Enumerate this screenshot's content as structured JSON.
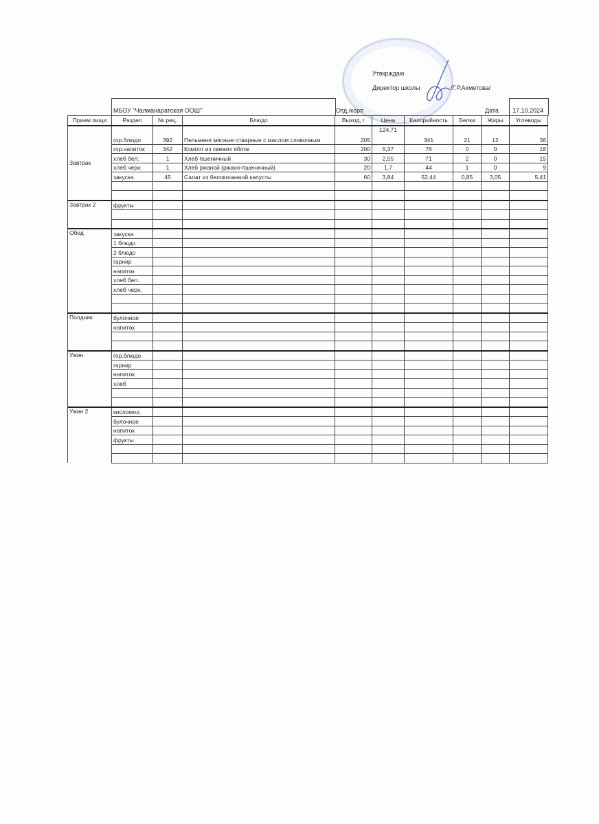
{
  "approval": {
    "approve_label": "Утвкрждаю",
    "director_label": "Директор школы",
    "director_name": "/Г.Р.Ахметова/"
  },
  "header": {
    "school": "МБОУ \"Чалманаратская ООШ\"",
    "dept_label": "Отд./корп",
    "date_label": "Дата",
    "date_value": "17.10.2024"
  },
  "columns": [
    "Прием пищи",
    "Раздел",
    "№ рец.",
    "Блюдо",
    "Выход, г",
    "Цена",
    "Калорийность",
    "Белки",
    "Жиры",
    "Углеводы"
  ],
  "sections": [
    {
      "meal": "Завтрак",
      "rows": [
        {
          "section": "гор.блюдо",
          "recipe": "392",
          "dish": "Пельмени мясные отварные с маслом сливочным",
          "yield": "205",
          "price": "124,71",
          "calories": "341",
          "protein": "21",
          "fat": "12",
          "carbs": "36"
        },
        {
          "section": "гор.напиток",
          "recipe": "342",
          "dish": "Компот из свежих яблок",
          "yield": "200",
          "price": "5,37",
          "calories": "76",
          "protein": "0",
          "fat": "0",
          "carbs": "18"
        },
        {
          "section": "хлеб бел.",
          "recipe": "1",
          "dish": "Хлеб пшеничный",
          "yield": "30",
          "price": "2,55",
          "calories": "71",
          "protein": "2",
          "fat": "0",
          "carbs": "15"
        },
        {
          "section": "хлеб черн.",
          "recipe": "1",
          "dish": "Хлеб ржаной (ржано-пшеничный)",
          "yield": "20",
          "price": "1,7",
          "calories": "44",
          "protein": "1",
          "fat": "0",
          "carbs": "9"
        },
        {
          "section": "закуска",
          "recipe": "45",
          "dish": "Салат из белокочанной капусты",
          "yield": "60",
          "price": "3,84",
          "calories": "52,44",
          "protein": "0,85",
          "fat": "3,05",
          "carbs": "5,41"
        },
        {},
        {}
      ]
    },
    {
      "meal": "Завтрак 2",
      "rows": [
        {
          "section": "фрукты"
        },
        {},
        {}
      ]
    },
    {
      "meal": "Обед",
      "rows": [
        {
          "section": "закуска"
        },
        {
          "section": "1 блюдо"
        },
        {
          "section": "2 блюдо"
        },
        {
          "section": "гарнир"
        },
        {
          "section": "напиток"
        },
        {
          "section": "хлеб бел."
        },
        {
          "section": "хлеб черн."
        },
        {},
        {}
      ]
    },
    {
      "meal": "Полдник",
      "rows": [
        {
          "section": "булочное"
        },
        {
          "section": "напиток"
        },
        {},
        {}
      ]
    },
    {
      "meal": "Ужин",
      "rows": [
        {
          "section": "гор.блюдо"
        },
        {
          "section": "гарнир"
        },
        {
          "section": "напиток"
        },
        {
          "section": "хлеб"
        },
        {},
        {}
      ]
    },
    {
      "meal": "Ужин 2",
      "rows": [
        {
          "section": "кисломол."
        },
        {
          "section": "булочное"
        },
        {
          "section": "напиток"
        },
        {
          "section": "фрукты"
        },
        {},
        {}
      ]
    }
  ]
}
